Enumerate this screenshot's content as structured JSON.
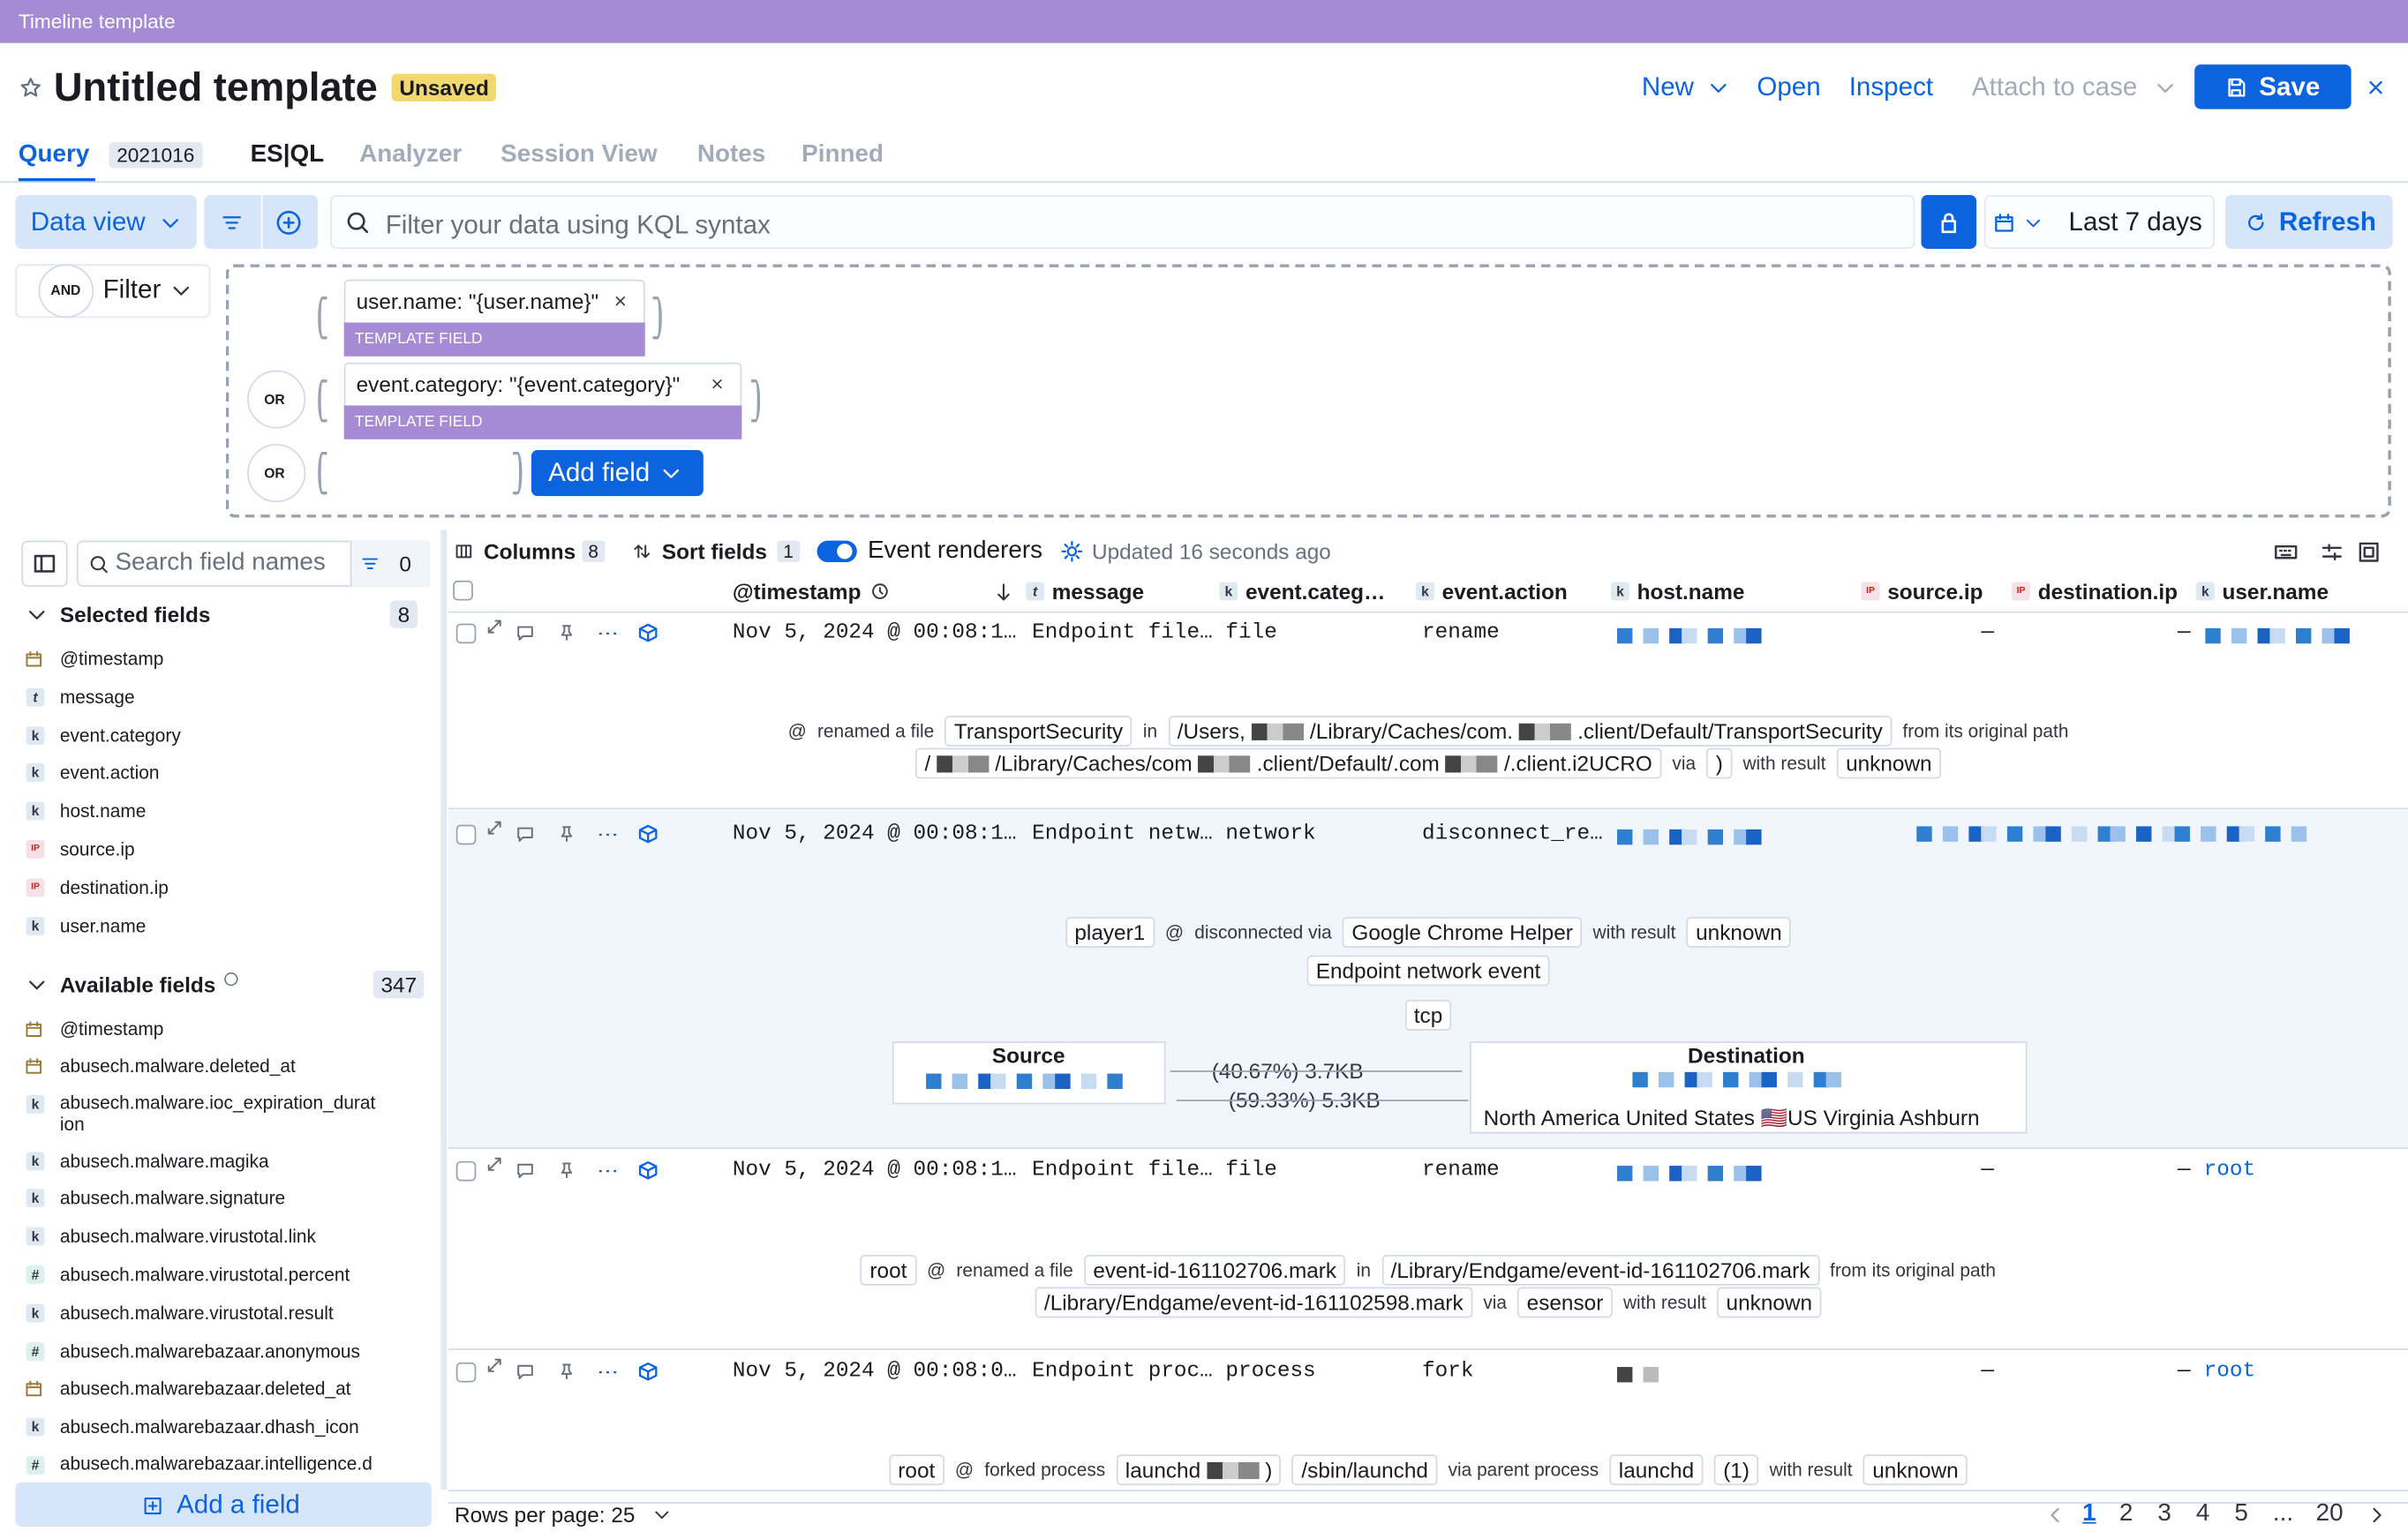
{
  "header": {
    "app_title": "Timeline template"
  },
  "title": {
    "name": "Untitled template",
    "badge": "Unsaved"
  },
  "actions": [
    "New",
    "Open",
    "Inspect",
    "Attach to case",
    "Save"
  ],
  "tabs": [
    {
      "label": "Query",
      "count": "2021016"
    },
    {
      "label": "ES|QL"
    },
    {
      "label": "Analyzer"
    },
    {
      "label": "Session View"
    },
    {
      "label": "Notes"
    },
    {
      "label": "Pinned"
    }
  ],
  "search": {
    "data_view": "Data view",
    "placeholder": "Filter your data using KQL syntax",
    "date": "Last 7 days",
    "refresh": "Refresh"
  },
  "filter": {
    "and": "AND",
    "label": "Filter",
    "groups": [
      {
        "field": "user.name: \"{user.name}\"",
        "tag": "TEMPLATE FIELD"
      },
      {
        "or": "OR",
        "field": "event.category: \"{event.category}\"",
        "tag": "TEMPLATE FIELD"
      }
    ],
    "or": "OR",
    "add_field": "Add field"
  },
  "sidebar": {
    "search_placeholder": "Search field names",
    "filter_count": "0",
    "selected": {
      "title": "Selected fields",
      "count": "8",
      "fields": [
        {
          "type": "date",
          "name": "@timestamp"
        },
        {
          "type": "t",
          "name": "message"
        },
        {
          "type": "k",
          "name": "event.category"
        },
        {
          "type": "k",
          "name": "event.action"
        },
        {
          "type": "k",
          "name": "host.name"
        },
        {
          "type": "IP",
          "name": "source.ip"
        },
        {
          "type": "IP",
          "name": "destination.ip"
        },
        {
          "type": "k",
          "name": "user.name"
        }
      ]
    },
    "available": {
      "title": "Available fields",
      "count": "347",
      "fields": [
        {
          "type": "date",
          "name": "@timestamp"
        },
        {
          "type": "date",
          "name": "abusech.malware.deleted_at"
        },
        {
          "type": "k",
          "name": "abusech.malware.ioc_expiration_duration"
        },
        {
          "type": "k",
          "name": "abusech.malware.magika"
        },
        {
          "type": "k",
          "name": "abusech.malware.signature"
        },
        {
          "type": "k",
          "name": "abusech.malware.virustotal.link"
        },
        {
          "type": "#",
          "name": "abusech.malware.virustotal.percent"
        },
        {
          "type": "k",
          "name": "abusech.malware.virustotal.result"
        },
        {
          "type": "#",
          "name": "abusech.malwarebazaar.anonymous"
        },
        {
          "type": "date",
          "name": "abusech.malwarebazaar.deleted_at"
        },
        {
          "type": "k",
          "name": "abusech.malwarebazaar.dhash_icon"
        },
        {
          "type": "#",
          "name": "abusech.malwarebazaar.intelligence.d"
        }
      ]
    },
    "add": "Add a field"
  },
  "toolbar": {
    "columns": "Columns",
    "columns_count": "8",
    "sort": "Sort fields",
    "sort_count": "1",
    "renderers": "Event renderers",
    "updated": "Updated 16 seconds ago"
  },
  "table": {
    "columns": [
      {
        "type": null,
        "name": "@timestamp"
      },
      {
        "type": "t",
        "name": "message"
      },
      {
        "type": "k",
        "name": "event.categ…"
      },
      {
        "type": "k",
        "name": "event.action"
      },
      {
        "type": "k",
        "name": "host.name"
      },
      {
        "type": "IP",
        "name": "source.ip"
      },
      {
        "type": "IP",
        "name": "destination.ip"
      },
      {
        "type": "k",
        "name": "user.name"
      }
    ],
    "rows": [
      {
        "timestamp": "Nov 5, 2024 @ 00:08:1…",
        "message": "Endpoint file…",
        "category": "file",
        "action": "rename",
        "source_ip": "—",
        "destination_ip": "—",
        "user": null,
        "renderer": [
          [
            {
              "text": "@"
            },
            {
              "text": "renamed a file"
            },
            {
              "chip": "TransportSecurity"
            },
            {
              "text": "in"
            },
            {
              "chip": [
                "/Users,",
                "/Library/Caches/com.",
                ".client/Default/TransportSecurity"
              ]
            },
            {
              "text": "from its original path"
            }
          ],
          [
            {
              "chip": [
                "/",
                "/Library/Caches/com",
                ".client/Default/.com",
                "/.client.i2UCRO"
              ]
            },
            {
              "text": "via"
            },
            {
              "chip": [
                ")"
              ]
            },
            {
              "text": "with result"
            },
            {
              "chip": "unknown"
            }
          ]
        ]
      },
      {
        "timestamp": "Nov 5, 2024 @ 00:08:1…",
        "message": "Endpoint netw…",
        "category": "network",
        "action": "disconnect_re…",
        "source_ip": null,
        "destination_ip": null,
        "user": null,
        "renderer": [
          [
            {
              "chip": "player1"
            },
            {
              "text": "@"
            },
            {
              "text": "disconnected via"
            },
            {
              "chip": "Google Chrome Helper"
            },
            {
              "text": "with result"
            },
            {
              "chip": "unknown"
            }
          ],
          [
            {
              "chip": "Endpoint network event"
            }
          ],
          [
            {
              "chip": "tcp"
            }
          ]
        ],
        "flow": {
          "source": "Source",
          "out": "(40.67%) 3.7KB",
          "in": "(59.33%) 5.3KB",
          "destination": "Destination",
          "geo": "North America United States 🇺🇸US Virginia Ashburn"
        }
      },
      {
        "timestamp": "Nov 5, 2024 @ 00:08:1…",
        "message": "Endpoint file…",
        "category": "file",
        "action": "rename",
        "source_ip": "—",
        "destination_ip": "—",
        "user": "root",
        "renderer": [
          [
            {
              "chip": "root"
            },
            {
              "text": "@"
            },
            {
              "text": "renamed a file"
            },
            {
              "chip": "event-id-161102706.mark"
            },
            {
              "text": "in"
            },
            {
              "chip": "/Library/Endgame/event-id-161102706.mark"
            },
            {
              "text": "from its original path"
            }
          ],
          [
            {
              "chip": "/Library/Endgame/event-id-161102598.mark"
            },
            {
              "text": "via"
            },
            {
              "chip": "esensor"
            },
            {
              "text": "with result"
            },
            {
              "chip": "unknown"
            }
          ]
        ]
      },
      {
        "timestamp": "Nov 5, 2024 @ 00:08:0…",
        "message": "Endpoint proc…",
        "category": "process",
        "action": "fork",
        "source_ip": "—",
        "destination_ip": "—",
        "user": "root",
        "renderer": [
          [
            {
              "chip": "root"
            },
            {
              "text": "@"
            },
            {
              "text": "forked process"
            },
            {
              "chip": [
                "launchd",
                ")"
              ]
            },
            {
              "chip": "/sbin/launchd"
            },
            {
              "text": "via parent process"
            },
            {
              "chip": "launchd"
            },
            {
              "chip": "(1)"
            },
            {
              "text": "with result"
            },
            {
              "chip": "unknown"
            }
          ]
        ]
      }
    ]
  },
  "footer": {
    "rows_per_page": "Rows per page: 25",
    "pages": [
      "1",
      "2",
      "3",
      "4",
      "5",
      "...",
      "20"
    ]
  }
}
